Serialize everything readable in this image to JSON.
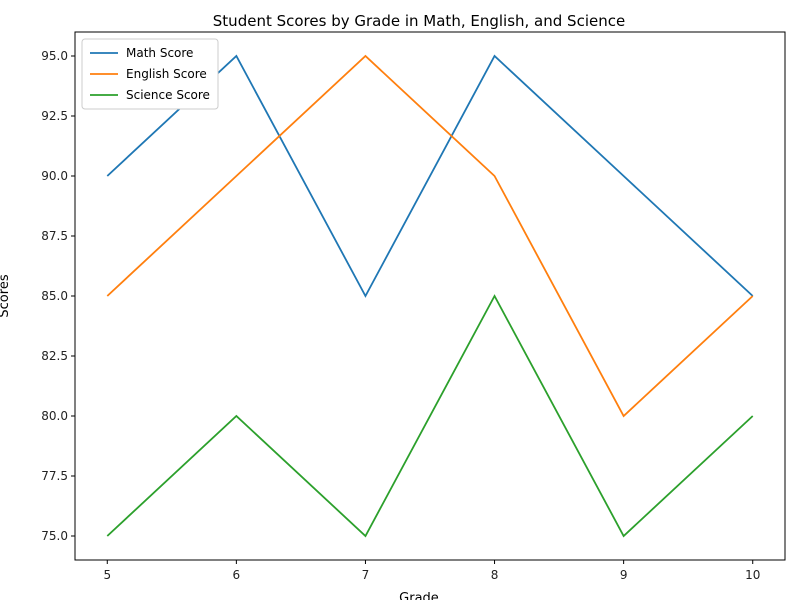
{
  "chart_data": {
    "type": "line",
    "title": "Student Scores by Grade in Math, English, and Science",
    "xlabel": "Grade",
    "ylabel": "Scores",
    "x": [
      5,
      6,
      7,
      8,
      9,
      10
    ],
    "xlim": [
      4.75,
      10.25
    ],
    "ylim": [
      74,
      96
    ],
    "xticks": [
      "5",
      "6",
      "7",
      "8",
      "9",
      "10"
    ],
    "yticks": [
      "75.0",
      "77.5",
      "80.0",
      "82.5",
      "85.0",
      "87.5",
      "90.0",
      "92.5",
      "95.0"
    ],
    "grid": false,
    "legend_position": "top-left",
    "series": [
      {
        "name": "Math Score",
        "color": "#1f77b4",
        "values": [
          90,
          95,
          85,
          95,
          90,
          85
        ]
      },
      {
        "name": "English Score",
        "color": "#ff7f0e",
        "values": [
          85,
          90,
          95,
          90,
          80,
          85
        ]
      },
      {
        "name": "Science Score",
        "color": "#2ca02c",
        "values": [
          75,
          80,
          75,
          85,
          75,
          80
        ]
      }
    ]
  }
}
